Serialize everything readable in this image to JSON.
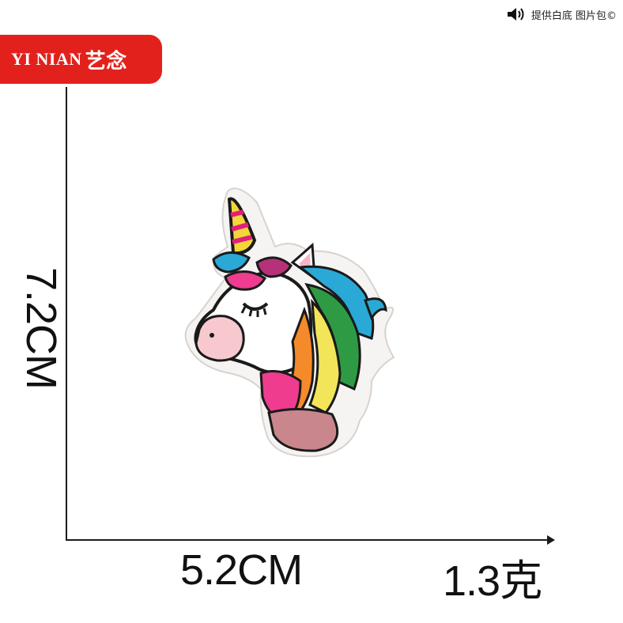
{
  "brand": {
    "latin": "YI NIAN",
    "cn": "艺念",
    "color": "#e3211c"
  },
  "top_note": {
    "text": "提供白底 图片包©",
    "icon": "speaker-icon"
  },
  "dimensions": {
    "height": "7.2CM",
    "width": "5.2CM",
    "weight": "1.3克"
  },
  "image": {
    "subject": "unicorn-patch-icon"
  }
}
